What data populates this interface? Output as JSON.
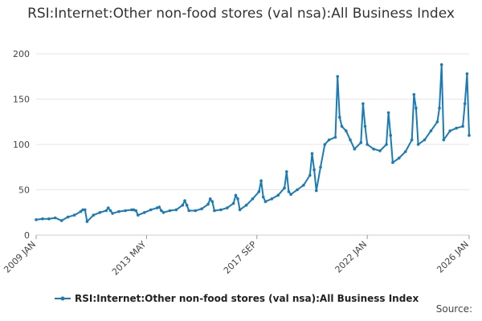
{
  "chart_data": {
    "type": "line",
    "title": "RSI:Internet:Other non-food stores (val nsa):All Business Index",
    "xlabel": "",
    "ylabel": "",
    "ylim": [
      0,
      200
    ],
    "y_ticks": [
      0,
      50,
      100,
      150,
      200
    ],
    "x_ticks": [
      "2009 JAN",
      "2013 MAY",
      "2017 SEP",
      "2022 JAN",
      "2026 JAN"
    ],
    "x_range": [
      "2009-01",
      "2026-01"
    ],
    "grid": true,
    "legend_position": "bottom",
    "color": "#1a7bb5",
    "series": [
      {
        "name": "RSI:Internet:Other non-food stores (val nsa):All Business Index",
        "x": [
          "2009-01",
          "2009-04",
          "2009-07",
          "2009-10",
          "2010-01",
          "2010-04",
          "2010-07",
          "2010-10",
          "2010-11",
          "2010-12",
          "2011-01",
          "2011-04",
          "2011-07",
          "2011-10",
          "2011-11",
          "2011-12",
          "2012-01",
          "2012-04",
          "2012-07",
          "2012-10",
          "2012-11",
          "2012-12",
          "2013-01",
          "2013-04",
          "2013-07",
          "2013-10",
          "2013-11",
          "2013-12",
          "2014-01",
          "2014-04",
          "2014-07",
          "2014-10",
          "2014-11",
          "2014-12",
          "2015-01",
          "2015-04",
          "2015-07",
          "2015-10",
          "2015-11",
          "2015-12",
          "2016-01",
          "2016-04",
          "2016-07",
          "2016-10",
          "2016-11",
          "2016-12",
          "2017-01",
          "2017-04",
          "2017-07",
          "2017-10",
          "2017-11",
          "2017-12",
          "2018-01",
          "2018-04",
          "2018-07",
          "2018-10",
          "2018-11",
          "2018-12",
          "2019-01",
          "2019-04",
          "2019-07",
          "2019-10",
          "2019-11",
          "2019-12",
          "2020-01",
          "2020-03",
          "2020-05",
          "2020-07",
          "2020-10",
          "2020-11",
          "2020-12",
          "2021-01",
          "2021-03",
          "2021-05",
          "2021-07",
          "2021-10",
          "2021-11",
          "2021-12",
          "2022-01",
          "2022-04",
          "2022-07",
          "2022-10",
          "2022-11",
          "2022-12",
          "2023-01",
          "2023-04",
          "2023-07",
          "2023-10",
          "2023-11",
          "2023-12",
          "2024-01",
          "2024-04",
          "2024-07",
          "2024-10",
          "2024-11",
          "2024-12",
          "2025-01",
          "2025-04",
          "2025-07",
          "2025-10",
          "2025-11",
          "2025-12",
          "2026-01"
        ],
        "values": [
          17,
          18,
          18,
          19,
          16,
          20,
          22,
          26,
          28,
          28,
          15,
          22,
          25,
          27,
          30,
          27,
          24,
          26,
          27,
          28,
          28,
          27,
          22,
          25,
          28,
          30,
          31,
          27,
          25,
          27,
          28,
          33,
          38,
          33,
          27,
          27,
          29,
          34,
          40,
          37,
          27,
          28,
          30,
          35,
          44,
          40,
          28,
          33,
          40,
          48,
          60,
          42,
          37,
          40,
          44,
          52,
          70,
          48,
          45,
          50,
          55,
          66,
          90,
          72,
          49,
          75,
          100,
          105,
          108,
          175,
          130,
          120,
          115,
          105,
          95,
          102,
          145,
          120,
          100,
          95,
          93,
          100,
          135,
          110,
          80,
          85,
          92,
          105,
          155,
          140,
          100,
          105,
          115,
          125,
          140,
          188,
          105,
          115,
          118,
          120,
          145,
          178,
          110
        ]
      }
    ]
  },
  "legend": {
    "label": "RSI:Internet:Other non-food stores (val nsa):All Business Index"
  },
  "source": {
    "label": "Source:"
  }
}
